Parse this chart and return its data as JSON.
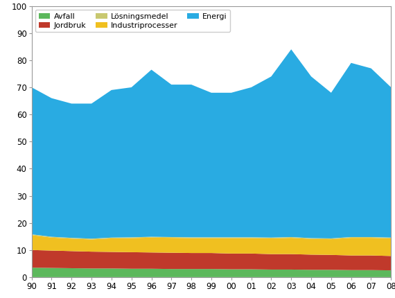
{
  "years": [
    1990,
    1991,
    1992,
    1993,
    1994,
    1995,
    1996,
    1997,
    1998,
    1999,
    2000,
    2001,
    2002,
    2003,
    2004,
    2005,
    2006,
    2007,
    2008
  ],
  "avfall": [
    3.5,
    3.4,
    3.3,
    3.2,
    3.2,
    3.1,
    3.1,
    3.0,
    3.0,
    3.0,
    2.9,
    2.9,
    2.8,
    2.8,
    2.7,
    2.7,
    2.6,
    2.6,
    2.5
  ],
  "jordbruk": [
    6.5,
    6.4,
    6.3,
    6.2,
    6.1,
    6.1,
    6.0,
    6.0,
    5.9,
    5.9,
    5.8,
    5.8,
    5.7,
    5.7,
    5.6,
    5.5,
    5.4,
    5.4,
    5.3
  ],
  "industriprocesser": [
    5.5,
    4.8,
    4.6,
    4.5,
    5.0,
    5.2,
    5.5,
    5.5,
    5.5,
    5.5,
    5.7,
    5.7,
    5.8,
    6.0,
    5.8,
    5.8,
    6.5,
    6.5,
    6.5
  ],
  "losningsmedel": [
    0.3,
    0.3,
    0.3,
    0.3,
    0.3,
    0.3,
    0.3,
    0.3,
    0.3,
    0.3,
    0.3,
    0.3,
    0.3,
    0.3,
    0.3,
    0.3,
    0.3,
    0.3,
    0.3
  ],
  "energi": [
    54.2,
    51.1,
    49.5,
    49.8,
    54.4,
    55.3,
    61.6,
    56.2,
    56.3,
    53.3,
    53.3,
    55.3,
    59.4,
    69.2,
    59.6,
    53.7,
    64.2,
    62.2,
    55.4
  ],
  "colors": {
    "avfall": "#5cb85c",
    "jordbruk": "#c0392b",
    "industriprocesser": "#f0c020",
    "losningsmedel": "#c8c870",
    "energi": "#29abe2"
  },
  "labels": {
    "avfall": "Avfall",
    "jordbruk": "Jordbruk",
    "industriprocesser": "Industriprocesser",
    "losningsmedel": "Lösningsmedel",
    "energi": "Energi"
  },
  "ylim": [
    0,
    100
  ],
  "yticks": [
    0,
    10,
    20,
    30,
    40,
    50,
    60,
    70,
    80,
    90,
    100
  ],
  "background_color": "#ffffff",
  "tick_label_fontsize": 8.5
}
